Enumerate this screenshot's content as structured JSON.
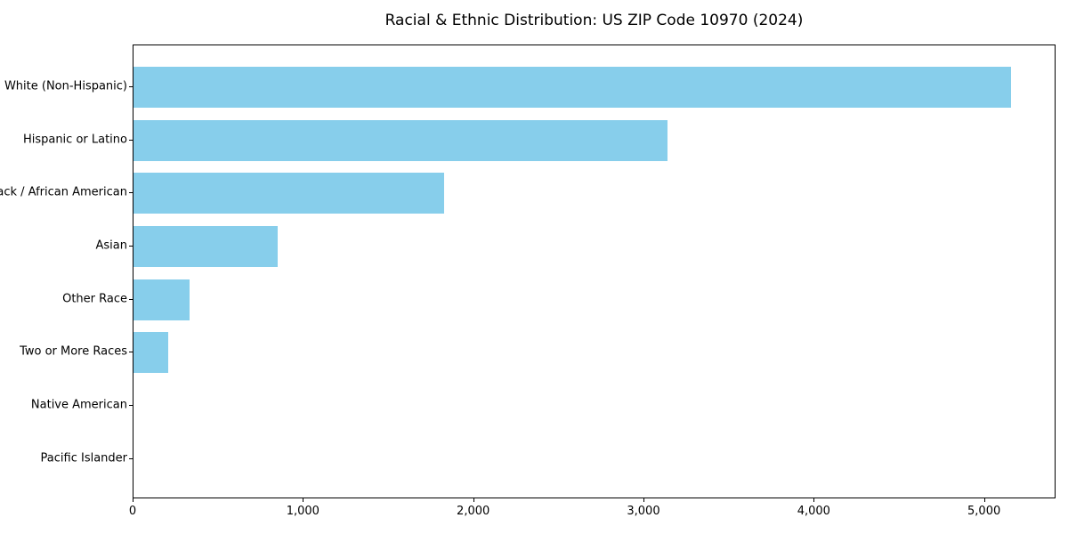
{
  "chart_data": {
    "type": "bar",
    "orientation": "horizontal",
    "title": "Racial & Ethnic Distribution: US ZIP Code 10970 (2024)",
    "categories": [
      "White (Non-Hispanic)",
      "Hispanic or Latino",
      "Black / African American",
      "Asian",
      "Other Race",
      "Two or More Races",
      "Native American",
      "Pacific Islander"
    ],
    "values": [
      5155,
      3135,
      1825,
      845,
      330,
      205,
      0,
      0
    ],
    "xlabel": "",
    "ylabel": "",
    "xlim": [
      0,
      5420
    ],
    "xticks": {
      "values": [
        0,
        1000,
        2000,
        3000,
        4000,
        5000
      ],
      "labels": [
        "0",
        "1,000",
        "2,000",
        "3,000",
        "4,000",
        "5,000"
      ]
    },
    "grid": false,
    "legend": "none",
    "bar_color": "#87CEEB",
    "axis_color": "#000000",
    "background_color": "#FFFFFF"
  }
}
